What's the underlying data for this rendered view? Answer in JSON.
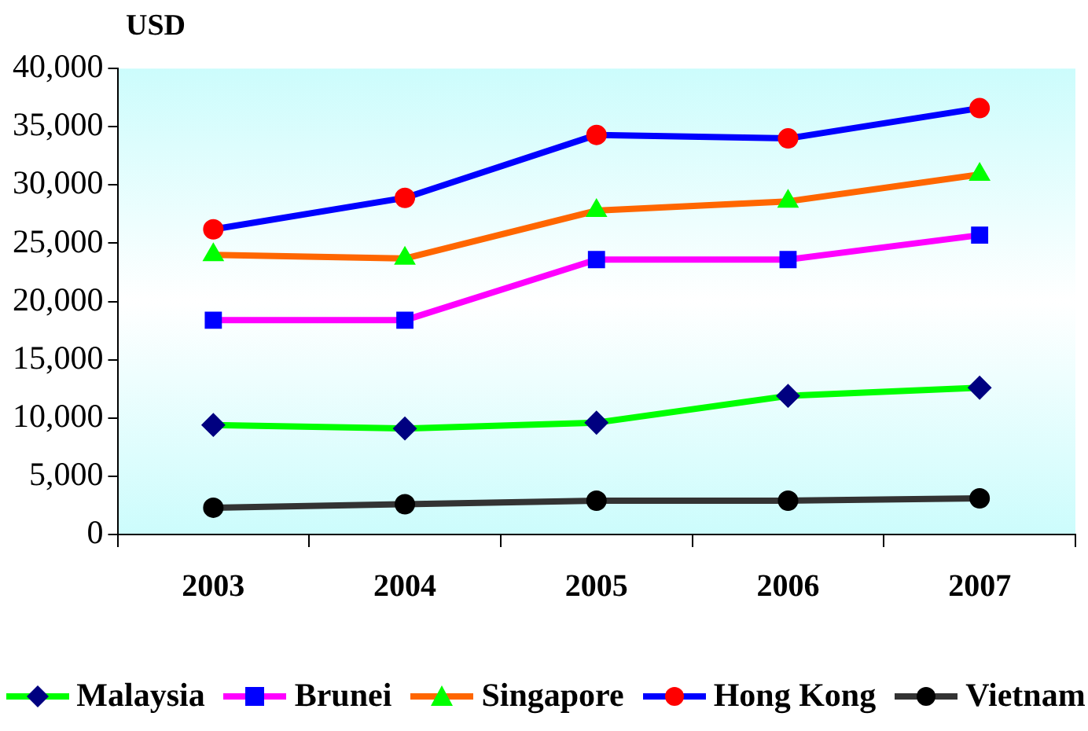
{
  "chart_data": {
    "type": "line",
    "ylabel": "USD",
    "categories": [
      "2003",
      "2004",
      "2005",
      "2006",
      "2007"
    ],
    "series": [
      {
        "name": "Malaysia",
        "color": "#00ff00",
        "colors": [
          "#000080",
          "#000080",
          "#000080",
          "#000080",
          "#000080"
        ],
        "marker": "diamond",
        "values": [
          9400,
          9100,
          9600,
          11900,
          12600
        ]
      },
      {
        "name": "Brunei",
        "color": "#ff00ff",
        "colors": [
          "#0000ff",
          "#0000ff",
          "#0000ff",
          "#0000ff",
          "#0000ff"
        ],
        "marker": "square",
        "values": [
          18400,
          18400,
          23600,
          23600,
          25700
        ]
      },
      {
        "name": "Singapore",
        "color": "#ff6600",
        "colors": [
          "#00ff00",
          "#00ff00",
          "#00ff00",
          "#00ff00",
          "#00ff00"
        ],
        "marker": "triangle",
        "values": [
          24000,
          23700,
          27800,
          28600,
          30900
        ]
      },
      {
        "name": "Hong Kong",
        "color": "#0000ff",
        "colors": [
          "#ff0000",
          "#ff0000",
          "#ff0000",
          "#ff0000",
          "#ff0000"
        ],
        "marker": "circle",
        "values": [
          26200,
          28900,
          34300,
          34000,
          36600
        ]
      },
      {
        "name": "Vietnam",
        "color": "#333333",
        "colors": [
          "#000000",
          "#000000",
          "#000000",
          "#000000",
          "#000000"
        ],
        "marker": "circle",
        "values": [
          2300,
          2600,
          2900,
          2900,
          3100
        ]
      }
    ],
    "ylim": [
      0,
      40000
    ],
    "yticks": [
      0,
      {
        "value": 5000,
        "label": "5,000"
      },
      {
        "value": 10000,
        "label": "10,000"
      },
      {
        "value": 15000,
        "label": "15,000"
      },
      {
        "value": 20000,
        "label": "20,000"
      },
      {
        "value": 25000,
        "label": "25,000"
      },
      {
        "value": 30000,
        "label": "30,000"
      },
      {
        "value": 35000,
        "label": "35,000"
      },
      {
        "value": 40000,
        "label": "40,000"
      }
    ],
    "grid": false,
    "legend": "bottom"
  }
}
